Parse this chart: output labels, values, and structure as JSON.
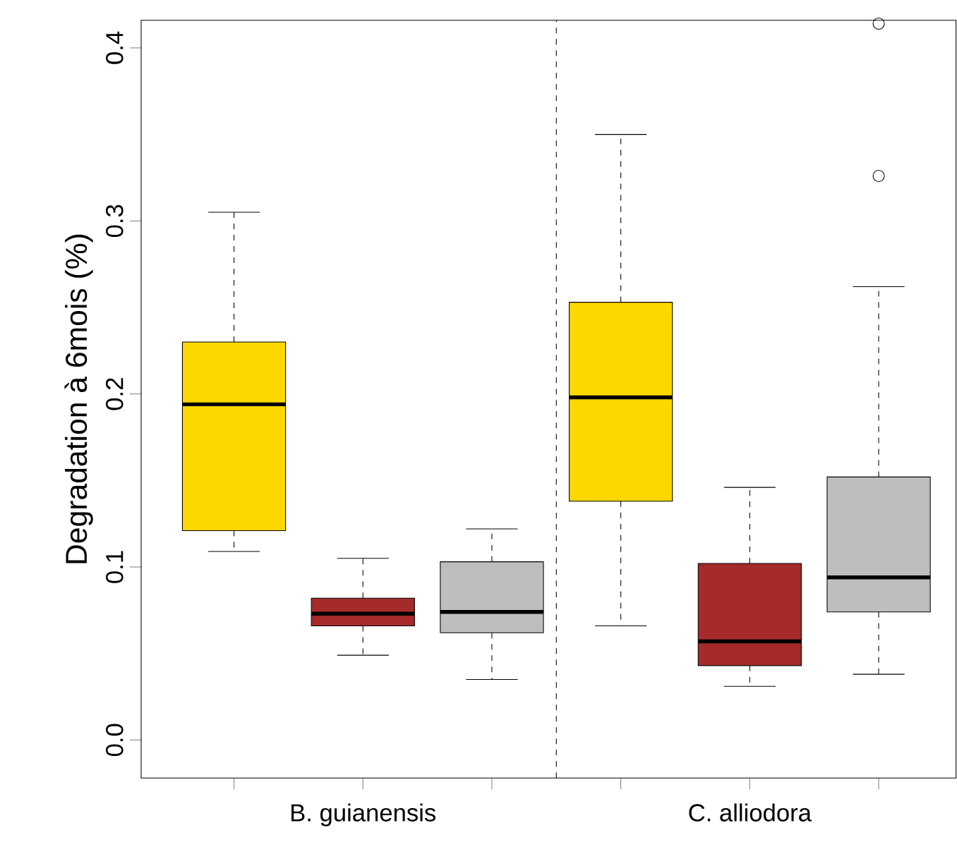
{
  "chart_data": {
    "type": "box",
    "ylabel": "Degradation à 6mois (%)",
    "categories": [
      null,
      "B. guianensis",
      null,
      null,
      "C. alliodora",
      null
    ],
    "colors": [
      "#ffd700",
      "#a52a2a",
      "#bebebe",
      "#ffd700",
      "#a52a2a",
      "#bebebe"
    ],
    "boxes": [
      {
        "low": 0.109,
        "q1": 0.121,
        "median": 0.194,
        "q3": 0.23,
        "high": 0.305
      },
      {
        "low": 0.049,
        "q1": 0.066,
        "median": 0.073,
        "q3": 0.082,
        "high": 0.105
      },
      {
        "low": 0.035,
        "q1": 0.062,
        "median": 0.074,
        "q3": 0.103,
        "high": 0.122
      },
      {
        "low": 0.066,
        "q1": 0.138,
        "median": 0.198,
        "q3": 0.253,
        "high": 0.35
      },
      {
        "low": 0.031,
        "q1": 0.043,
        "median": 0.057,
        "q3": 0.102,
        "high": 0.146
      },
      {
        "low": 0.038,
        "q1": 0.074,
        "median": 0.094,
        "q3": 0.152,
        "high": 0.262,
        "outliers": [
          0.326,
          0.414
        ]
      }
    ],
    "ylim": [
      -0.022,
      0.416
    ],
    "yticks": [
      {
        "value": 0,
        "label": "0.0"
      },
      {
        "value": 0.1,
        "label": "0.1"
      },
      {
        "value": 0.2,
        "label": "0.2"
      },
      {
        "value": 0.3,
        "label": "0.3"
      },
      {
        "value": 0.4,
        "label": "0.4"
      }
    ],
    "grid": false
  }
}
